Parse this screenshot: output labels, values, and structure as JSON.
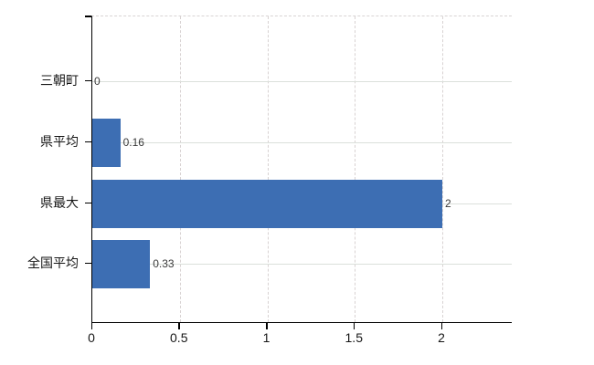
{
  "chart_data": {
    "type": "bar",
    "orientation": "horizontal",
    "title": "",
    "xlabel": "",
    "ylabel": "",
    "categories": [
      "三朝町",
      "県平均",
      "県最大",
      "全国平均"
    ],
    "values": [
      0,
      0.16,
      2,
      0.33
    ],
    "value_labels": [
      "0",
      "0.16",
      "2",
      "0.33"
    ],
    "x_ticks": [
      0,
      0.5,
      1,
      1.5,
      2
    ],
    "x_tick_labels": [
      "0",
      "0.5",
      "1",
      "1.5",
      "2"
    ],
    "xlim": [
      0,
      2.4
    ],
    "grid": true,
    "legend": false,
    "colors": {
      "bar": "#3d6eb3",
      "grid_horizontal": "#dbe0db",
      "grid_vertical": "#d8d2d2",
      "axis": "#000000",
      "category_text": "#161616",
      "value_text": "#3a3a3a"
    }
  }
}
